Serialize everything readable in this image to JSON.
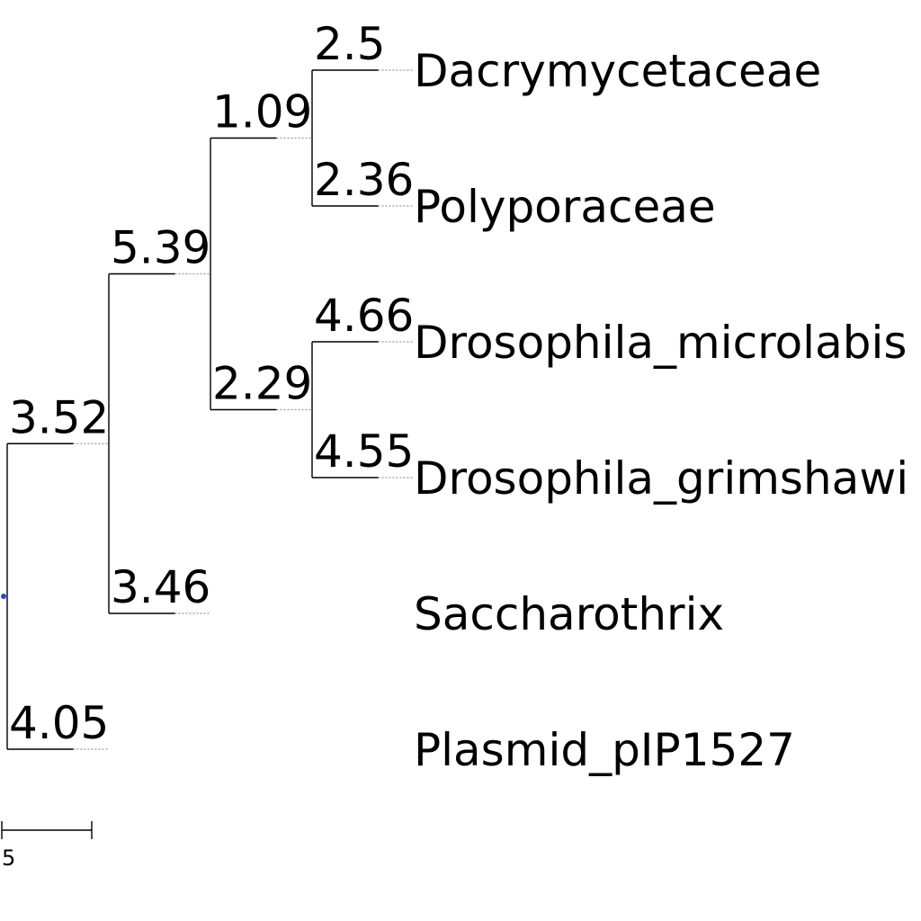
{
  "tree": {
    "root": {
      "children": [
        {
          "branch_length": 3.52,
          "children": [
            {
              "branch_length": 5.39,
              "children": [
                {
                  "branch_length": 1.09,
                  "children": [
                    {
                      "name": "Dacrymycetaceae",
                      "branch_length": 2.5
                    },
                    {
                      "name": "Polyporaceae",
                      "branch_length": 2.36
                    }
                  ]
                },
                {
                  "branch_length": 2.29,
                  "children": [
                    {
                      "name": "Drosophila_microlabis",
                      "branch_length": 4.66
                    },
                    {
                      "name": "Drosophila_grimshawi",
                      "branch_length": 4.55
                    }
                  ]
                }
              ]
            },
            {
              "name": "Saccharothrix",
              "branch_length": 3.46
            }
          ]
        },
        {
          "name": "Plasmid_pIP1527",
          "branch_length": 4.05
        }
      ]
    }
  },
  "scale_bar": {
    "length": 5,
    "label": "5"
  },
  "colors": {
    "branch": "#000000",
    "guide": "#999999",
    "root_dot": "#1f4fbf"
  }
}
